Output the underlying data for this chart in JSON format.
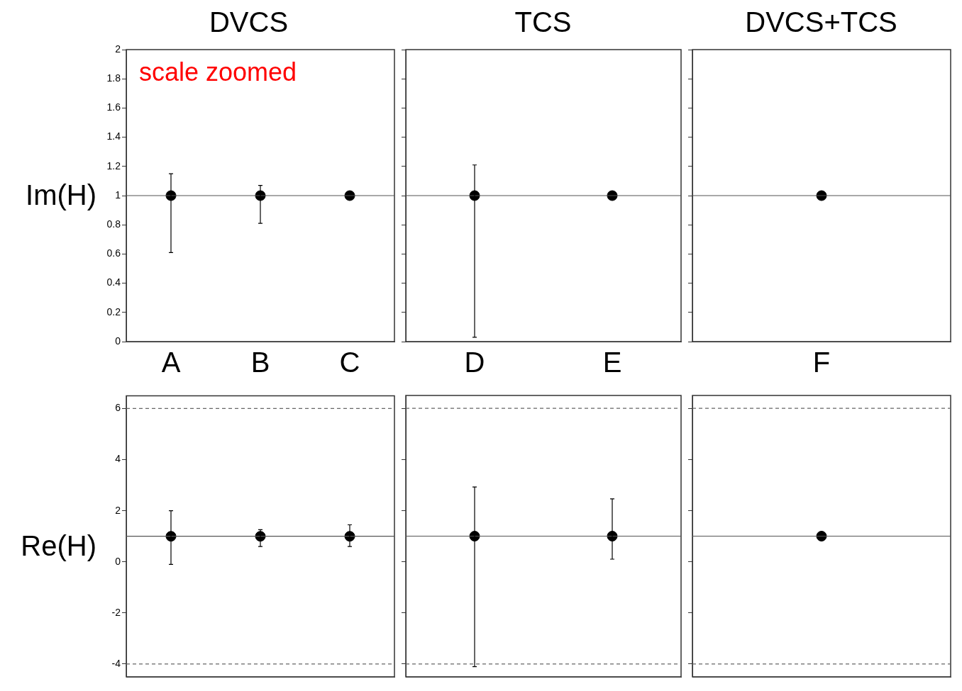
{
  "chart_data": [
    {
      "type": "scatter",
      "title": "DVCS",
      "ylabel": "Im(H)",
      "categories": [
        "A",
        "B",
        "C"
      ],
      "values": [
        1,
        1,
        1
      ],
      "errors": [
        [
          0.61,
          1.15
        ],
        [
          0.81,
          1.07
        ],
        null
      ],
      "color": "#000000",
      "marker": "circle",
      "ylim": [
        0,
        2
      ],
      "yticks": [
        0,
        0.2,
        0.4,
        0.6,
        0.8,
        1,
        1.2,
        1.4,
        1.6,
        1.8,
        2
      ],
      "ref_lines": [
        {
          "axis": "y",
          "value": 1,
          "line_style": "solid"
        }
      ],
      "annotations": [
        "scale zoomed"
      ]
    },
    {
      "type": "scatter",
      "title": "TCS",
      "categories": [
        "D",
        "E"
      ],
      "values": [
        1,
        1
      ],
      "errors": [
        [
          0.03,
          1.21
        ],
        null
      ],
      "color": "#000000",
      "marker": "circle",
      "ylim": [
        0,
        2
      ],
      "yticks": [
        0,
        0.2,
        0.4,
        0.6,
        0.8,
        1,
        1.2,
        1.4,
        1.6,
        1.8,
        2
      ],
      "tick_labels": "x",
      "ref_lines": [
        {
          "axis": "y",
          "value": 1,
          "line_style": "solid"
        }
      ]
    },
    {
      "type": "scatter",
      "title": "DVCS+TCS",
      "categories": [
        "F"
      ],
      "values": [
        1
      ],
      "color": "#000000",
      "marker": "circle",
      "ylim": [
        0,
        2
      ],
      "yticks": [
        0,
        0.2,
        0.4,
        0.6,
        0.8,
        1,
        1.2,
        1.4,
        1.6,
        1.8,
        2
      ],
      "tick_labels": "x",
      "ref_lines": [
        {
          "axis": "y",
          "value": 1,
          "line_style": "solid"
        }
      ]
    },
    {
      "type": "scatter",
      "ylabel": "Re(H)",
      "categories": [
        null,
        null,
        null
      ],
      "values": [
        1,
        1,
        1
      ],
      "errors": [
        [
          -0.1,
          2.0
        ],
        [
          0.6,
          1.26
        ],
        [
          0.6,
          1.45
        ]
      ],
      "color": "#000000",
      "marker": "circle",
      "ylim": [
        -4.5,
        6.5
      ],
      "yticks": [
        -4,
        -2,
        0,
        2,
        4,
        6
      ],
      "tick_labels": "y",
      "ref_lines": [
        {
          "axis": "y",
          "value": 1,
          "line_style": "solid"
        },
        {
          "axis": "y",
          "value": 6,
          "line_style": "dashed"
        },
        {
          "axis": "y",
          "value": -4,
          "line_style": "dashed"
        }
      ]
    },
    {
      "type": "scatter",
      "categories": [
        null,
        null
      ],
      "values": [
        1,
        1
      ],
      "errors": [
        [
          -4.1,
          2.92
        ],
        [
          0.1,
          2.46
        ]
      ],
      "color": "#000000",
      "marker": "circle",
      "ylim": [
        -4.5,
        6.5
      ],
      "yticks": [
        -4,
        -2,
        0,
        2,
        4,
        6
      ],
      "tick_labels": false,
      "ref_lines": [
        {
          "axis": "y",
          "value": 1,
          "line_style": "solid"
        },
        {
          "axis": "y",
          "value": 6,
          "line_style": "dashed"
        },
        {
          "axis": "y",
          "value": -4,
          "line_style": "dashed"
        }
      ]
    },
    {
      "type": "scatter",
      "categories": [
        null
      ],
      "values": [
        1
      ],
      "color": "#000000",
      "marker": "circle",
      "ylim": [
        -4.5,
        6.5
      ],
      "yticks": [
        -4,
        -2,
        0,
        2,
        4,
        6
      ],
      "tick_labels": false,
      "ref_lines": [
        {
          "axis": "y",
          "value": 1,
          "line_style": "solid"
        },
        {
          "axis": "y",
          "value": 6,
          "line_style": "dashed"
        },
        {
          "axis": "y",
          "value": -4,
          "line_style": "dashed"
        }
      ]
    }
  ]
}
